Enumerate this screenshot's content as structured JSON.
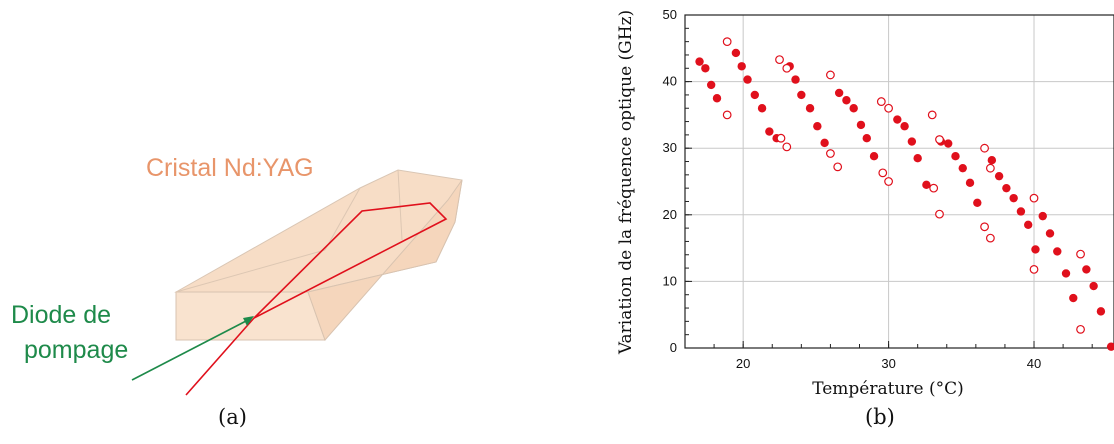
{
  "panel_a": {
    "crystal_label": "Cristal Nd:YAG",
    "diode_label_line1": "Diode de",
    "diode_label_line2": "pompage",
    "caption": "(a)",
    "colors": {
      "crystal_fill": "#f9e3cf",
      "crystal_text": "#e8956a",
      "diode_text": "#1e8a4a",
      "beam": "#e0101c"
    }
  },
  "panel_b": {
    "caption": "(b)",
    "chart_data": {
      "type": "scatter",
      "xlabel": "Température (°C)",
      "ylabel": "Variation de la fréquence optique (GHz)",
      "xlim": [
        16,
        45.5
      ],
      "ylim": [
        0,
        50
      ],
      "xticks": [
        "20",
        "30",
        "40"
      ],
      "yticks": [
        "0",
        "10",
        "20",
        "30",
        "40",
        "50"
      ],
      "grid": true,
      "series": [
        {
          "marker": "filled-circle",
          "color": "#e0101c",
          "points": [
            [
              17.0,
              43.0
            ],
            [
              17.4,
              42.0
            ],
            [
              17.8,
              39.5
            ],
            [
              18.2,
              37.5
            ],
            [
              19.5,
              44.3
            ],
            [
              19.9,
              42.3
            ],
            [
              20.3,
              40.3
            ],
            [
              20.8,
              38.0
            ],
            [
              21.3,
              36.0
            ],
            [
              21.8,
              32.5
            ],
            [
              22.3,
              31.5
            ],
            [
              23.2,
              42.3
            ],
            [
              23.6,
              40.3
            ],
            [
              24.0,
              38.0
            ],
            [
              24.6,
              36.0
            ],
            [
              25.1,
              33.3
            ],
            [
              25.6,
              30.8
            ],
            [
              26.6,
              38.3
            ],
            [
              27.1,
              37.2
            ],
            [
              27.6,
              36.0
            ],
            [
              28.1,
              33.5
            ],
            [
              28.5,
              31.5
            ],
            [
              29.0,
              28.8
            ],
            [
              30.6,
              34.3
            ],
            [
              31.1,
              33.3
            ],
            [
              31.6,
              31.0
            ],
            [
              32.0,
              28.5
            ],
            [
              32.6,
              24.5
            ],
            [
              33.6,
              31.0
            ],
            [
              34.1,
              30.7
            ],
            [
              34.6,
              28.8
            ],
            [
              35.1,
              27.0
            ],
            [
              35.6,
              24.8
            ],
            [
              36.1,
              21.8
            ],
            [
              37.1,
              28.2
            ],
            [
              37.6,
              25.8
            ],
            [
              38.1,
              24.0
            ],
            [
              38.6,
              22.5
            ],
            [
              39.1,
              20.5
            ],
            [
              39.6,
              18.5
            ],
            [
              40.1,
              14.8
            ],
            [
              40.6,
              19.8
            ],
            [
              41.1,
              17.2
            ],
            [
              41.6,
              14.5
            ],
            [
              42.2,
              11.2
            ],
            [
              42.7,
              7.5
            ],
            [
              43.6,
              11.8
            ],
            [
              44.1,
              9.3
            ],
            [
              44.6,
              5.5
            ],
            [
              45.3,
              0.2
            ]
          ]
        },
        {
          "marker": "open-circle",
          "color": "#e0101c",
          "points": [
            [
              18.9,
              46.0
            ],
            [
              18.9,
              35.0
            ],
            [
              22.5,
              43.3
            ],
            [
              23.0,
              42.0
            ],
            [
              22.6,
              31.5
            ],
            [
              23.0,
              30.2
            ],
            [
              26.0,
              41.0
            ],
            [
              26.5,
              27.2
            ],
            [
              26.0,
              29.2
            ],
            [
              29.5,
              37.0
            ],
            [
              30.0,
              36.0
            ],
            [
              29.6,
              26.3
            ],
            [
              30.0,
              25.0
            ],
            [
              33.0,
              35.0
            ],
            [
              33.5,
              31.3
            ],
            [
              33.1,
              24.0
            ],
            [
              33.5,
              20.1
            ],
            [
              36.6,
              30.0
            ],
            [
              37.0,
              27.0
            ],
            [
              36.6,
              18.2
            ],
            [
              37.0,
              16.5
            ],
            [
              40.0,
              22.5
            ],
            [
              40.0,
              11.8
            ],
            [
              43.2,
              14.1
            ],
            [
              43.2,
              2.8
            ]
          ]
        }
      ]
    }
  }
}
